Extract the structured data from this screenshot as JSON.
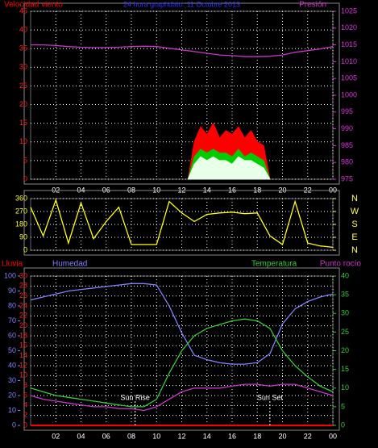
{
  "chart_data": [
    {
      "type": "line",
      "title": "24 hora graphdato: 11 Octubre 2013",
      "title_color": "#3030ff",
      "ylim": [
        0,
        45
      ],
      "yticks": [
        0,
        5,
        10,
        15,
        20,
        25,
        30,
        35,
        40,
        45
      ],
      "ycolor": "#ff2020",
      "y2lim": [
        975,
        1025
      ],
      "y2ticks": [
        975,
        980,
        985,
        990,
        995,
        1000,
        1005,
        1010,
        1015,
        1020,
        1025
      ],
      "y2color": "#dd33dd",
      "xlim": [
        0,
        24
      ],
      "xticks": [
        {
          "value": 2,
          "label": "02"
        },
        {
          "value": 4,
          "label": "04"
        },
        {
          "value": 6,
          "label": "06"
        },
        {
          "value": 8,
          "label": "08"
        },
        10,
        12,
        14,
        16,
        18,
        20,
        22,
        {
          "value": 24,
          "label": "00"
        }
      ],
      "grid": true,
      "series": [
        {
          "name": "Velocidad viento",
          "color": "#ff0000",
          "style": "area",
          "x": [
            12.5,
            13,
            13.5,
            14,
            14.5,
            15,
            15.5,
            16,
            16.5,
            17,
            17.5,
            18,
            18.5,
            19
          ],
          "values": [
            0,
            10,
            14,
            12,
            15,
            11,
            13,
            12,
            14,
            11,
            13,
            10,
            9,
            0
          ]
        },
        {
          "color": "#00cc00",
          "style": "area",
          "x": [
            12.5,
            13,
            13.5,
            14,
            14.5,
            15,
            15.5,
            16,
            16.5,
            17,
            17.5,
            18,
            18.5,
            19
          ],
          "values": [
            0,
            6,
            8,
            7,
            8,
            7,
            7,
            6,
            8,
            6,
            7,
            6,
            5,
            0
          ]
        },
        {
          "color": "#e8ffe8",
          "style": "area",
          "x": [
            12.5,
            13,
            13.5,
            14,
            14.5,
            15,
            15.5,
            16,
            16.5,
            17,
            17.5,
            18,
            18.5,
            19
          ],
          "values": [
            0,
            4,
            6,
            5,
            6,
            5,
            5,
            4,
            6,
            5,
            5,
            4,
            3,
            0
          ]
        },
        {
          "name": "Presión",
          "color": "#cc33cc",
          "axis": "y2",
          "x": [
            0,
            1,
            2,
            3,
            4,
            5,
            6,
            7,
            8,
            9,
            10,
            11,
            12,
            13,
            14,
            15,
            16,
            17,
            18,
            19,
            20,
            21,
            22,
            23,
            24
          ],
          "values": [
            1015,
            1015,
            1014.8,
            1014.5,
            1014.3,
            1014.2,
            1014.2,
            1014.3,
            1014.5,
            1014.6,
            1014.5,
            1014,
            1013.5,
            1013,
            1012.5,
            1012,
            1011.8,
            1011.5,
            1011.5,
            1011.6,
            1012,
            1012.8,
            1013.3,
            1013.8,
            1014.5
          ]
        }
      ]
    },
    {
      "type": "line",
      "ylim": [
        0,
        360
      ],
      "yticks": [
        0,
        90,
        180,
        270,
        360
      ],
      "ycolor": "#ffff40",
      "y2lim": [
        0,
        360
      ],
      "y2ticks": [
        {
          "value": 360,
          "label": "N"
        },
        {
          "value": 270,
          "label": "W"
        },
        {
          "value": 180,
          "label": "S"
        },
        {
          "value": 90,
          "label": "E"
        },
        {
          "value": 0,
          "label": "N"
        }
      ],
      "y2color": "#ffff40",
      "xlim": [
        0,
        24
      ],
      "grid": true,
      "series": [
        {
          "color": "#ffff00",
          "x": [
            0,
            1,
            2,
            3,
            4,
            5,
            6,
            7,
            8,
            9,
            10,
            11,
            12,
            13,
            14,
            15,
            16,
            17,
            18,
            19,
            20,
            21,
            22,
            23,
            24
          ],
          "values": [
            300,
            100,
            350,
            50,
            330,
            80,
            200,
            300,
            40,
            40,
            40,
            340,
            260,
            200,
            250,
            260,
            265,
            255,
            260,
            100,
            40,
            340,
            50,
            30,
            20
          ]
        }
      ]
    },
    {
      "type": "line",
      "ylim": [
        0,
        30
      ],
      "yticks": [
        0,
        2,
        4,
        6,
        8,
        10,
        12,
        14,
        16,
        18,
        20,
        22,
        24,
        26,
        28,
        30
      ],
      "ycolor": "#ff2020",
      "y3lim": [
        0,
        100
      ],
      "y3ticks": [
        0,
        10,
        20,
        30,
        40,
        50,
        60,
        70,
        80,
        90,
        100
      ],
      "y3color": "#8080ff",
      "y2lim": [
        0,
        40
      ],
      "y2ticks": [
        0,
        5,
        10,
        15,
        20,
        25,
        30,
        35,
        40
      ],
      "y2color": "#33cc33",
      "xlim": [
        0,
        24
      ],
      "xticks": [
        {
          "value": 2,
          "label": "02"
        },
        {
          "value": 4,
          "label": "04"
        },
        {
          "value": 6,
          "label": "06"
        },
        {
          "value": 8,
          "label": "08"
        },
        10,
        12,
        14,
        16,
        18,
        20,
        22,
        {
          "value": 24,
          "label": "00"
        }
      ],
      "grid": true,
      "annotations": [
        {
          "text": "Sun Rise",
          "x": 8.3
        },
        {
          "text": "Sun Set",
          "x": 19
        }
      ],
      "series": [
        {
          "name": "Lluvia",
          "color": "#ff0000",
          "x": [
            0,
            24
          ],
          "values": [
            0,
            0
          ]
        },
        {
          "name": "Humedad",
          "color": "#8080ff",
          "axis": "y3",
          "x": [
            0,
            1,
            2,
            3,
            4,
            5,
            6,
            7,
            8,
            9,
            10,
            11,
            12,
            13,
            14,
            15,
            16,
            17,
            18,
            19,
            20,
            21,
            22,
            23,
            24
          ],
          "values": [
            84,
            86,
            88,
            90,
            91,
            92,
            93,
            94,
            95,
            95,
            94,
            80,
            62,
            47,
            44,
            42,
            41,
            41,
            42,
            48,
            68,
            78,
            83,
            86,
            88
          ]
        },
        {
          "name": "Temperatura",
          "color": "#33cc33",
          "axis": "y2",
          "x": [
            0,
            1,
            2,
            3,
            4,
            5,
            6,
            7,
            8,
            9,
            10,
            11,
            12,
            13,
            14,
            15,
            16,
            17,
            18,
            19,
            20,
            21,
            22,
            23,
            24
          ],
          "values": [
            10,
            9,
            8,
            7.5,
            7,
            6.5,
            6,
            5.5,
            5,
            5,
            7,
            14,
            20,
            24,
            26,
            27,
            28,
            28.5,
            28,
            26,
            20,
            16,
            13,
            10.5,
            9
          ]
        },
        {
          "name": "Punto rocío",
          "color": "#cc33cc",
          "axis": "y2",
          "x": [
            0,
            1,
            2,
            3,
            4,
            5,
            6,
            7,
            8,
            9,
            10,
            11,
            12,
            13,
            14,
            15,
            16,
            17,
            18,
            19,
            20,
            21,
            22,
            23,
            24
          ],
          "values": [
            8,
            7,
            6.5,
            6,
            5.5,
            5,
            5,
            4.5,
            4.5,
            4,
            5,
            7,
            9,
            10,
            10,
            10,
            10.5,
            11,
            11,
            10.5,
            11,
            11,
            10,
            9,
            8
          ]
        }
      ]
    }
  ]
}
